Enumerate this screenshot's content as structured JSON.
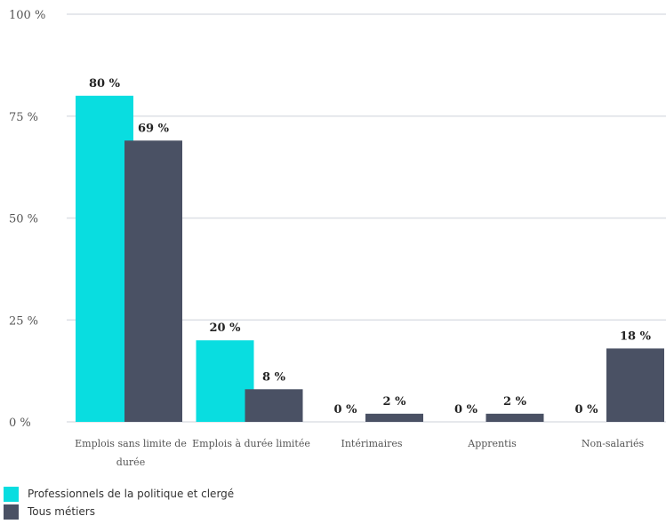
{
  "chart_data": {
    "type": "bar",
    "categories": [
      [
        "Emplois sans limite de",
        "durée"
      ],
      [
        "Emplois à durée limitée"
      ],
      [
        "Intérimaires"
      ],
      [
        "Apprentis"
      ],
      [
        "Non-salariés"
      ]
    ],
    "series": [
      {
        "name": "Professionnels de la politique et clergé",
        "color": "#09dde0",
        "values": [
          80,
          20,
          0,
          0,
          0
        ],
        "labels": [
          "80 %",
          "20 %",
          "0 %",
          "0 %",
          "0 %"
        ]
      },
      {
        "name": "Tous métiers",
        "color": "#4a5164",
        "values": [
          69,
          8,
          2,
          2,
          18
        ],
        "labels": [
          "69 %",
          "8 %",
          "2 %",
          "2 %",
          "18 %"
        ]
      }
    ],
    "yticks": [
      0,
      25,
      50,
      75,
      100
    ],
    "ytick_labels": [
      "0 %",
      "25 %",
      "50 %",
      "75 %",
      "100 %"
    ],
    "ylim": [
      0,
      100
    ],
    "grid": true,
    "legend_position": "bottom-left"
  }
}
